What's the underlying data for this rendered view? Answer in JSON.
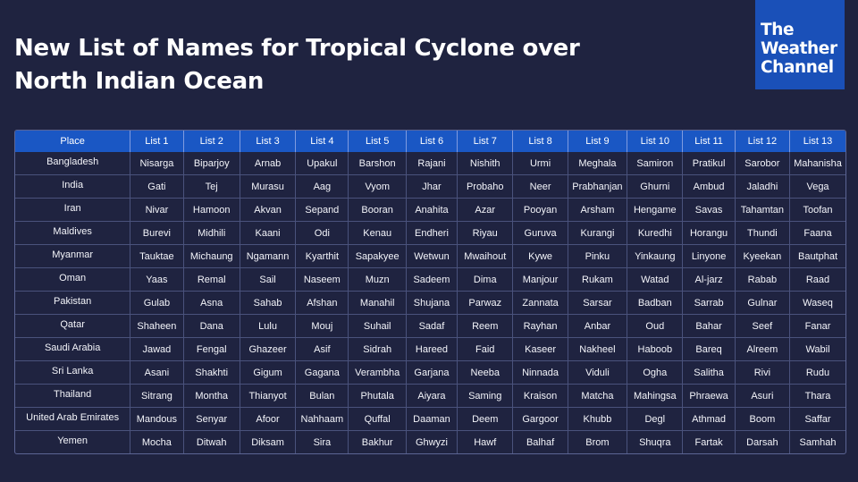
{
  "title": {
    "line1": "New List of Names for Tropical Cyclone over",
    "line2": "North Indian Ocean"
  },
  "logo": {
    "line1": "The",
    "line2": "Weather",
    "line3": "Channel"
  },
  "colors": {
    "background": "#1f2340",
    "header": "#1a57c4",
    "logo": "#1a50b8"
  },
  "table": {
    "headers": [
      "Place",
      "List 1",
      "List 2",
      "List 3",
      "List 4",
      "List 5",
      "List 6",
      "List 7",
      "List 8",
      "List 9",
      "List 10",
      "List 11",
      "List 12",
      "List 13"
    ],
    "rows": [
      [
        "Bangladesh",
        "Nisarga",
        "Biparjoy",
        "Arnab",
        "Upakul",
        "Barshon",
        "Rajani",
        "Nishith",
        "Urmi",
        "Meghala",
        "Samiron",
        "Pratikul",
        "Sarobor",
        "Mahanisha"
      ],
      [
        "India",
        "Gati",
        "Tej",
        "Murasu",
        "Aag",
        "Vyom",
        "Jhar",
        "Probaho",
        "Neer",
        "Prabhanjan",
        "Ghurni",
        "Ambud",
        "Jaladhi",
        "Vega"
      ],
      [
        "Iran",
        "Nivar",
        "Hamoon",
        "Akvan",
        "Sepand",
        "Booran",
        "Anahita",
        "Azar",
        "Pooyan",
        "Arsham",
        "Hengame",
        "Savas",
        "Tahamtan",
        "Toofan"
      ],
      [
        "Maldives",
        "Burevi",
        "Midhili",
        "Kaani",
        "Odi",
        "Kenau",
        "Endheri",
        "Riyau",
        "Guruva",
        "Kurangi",
        "Kuredhi",
        "Horangu",
        "Thundi",
        "Faana"
      ],
      [
        "Myanmar",
        "Tauktae",
        "Michaung",
        "Ngamann",
        "Kyarthit",
        "Sapakyee",
        "Wetwun",
        "Mwaihout",
        "Kywe",
        "Pinku",
        "Yinkaung",
        "Linyone",
        "Kyeekan",
        "Bautphat"
      ],
      [
        "Oman",
        "Yaas",
        "Remal",
        "Sail",
        "Naseem",
        "Muzn",
        "Sadeem",
        "Dima",
        "Manjour",
        "Rukam",
        "Watad",
        "Al-jarz",
        "Rabab",
        "Raad"
      ],
      [
        "Pakistan",
        "Gulab",
        "Asna",
        "Sahab",
        "Afshan",
        "Manahil",
        "Shujana",
        "Parwaz",
        "Zannata",
        "Sarsar",
        "Badban",
        "Sarrab",
        "Gulnar",
        "Waseq"
      ],
      [
        "Qatar",
        "Shaheen",
        "Dana",
        "Lulu",
        "Mouj",
        "Suhail",
        "Sadaf",
        "Reem",
        "Rayhan",
        "Anbar",
        "Oud",
        "Bahar",
        "Seef",
        "Fanar"
      ],
      [
        "Saudi Arabia",
        "Jawad",
        "Fengal",
        "Ghazeer",
        "Asif",
        "Sidrah",
        "Hareed",
        "Faid",
        "Kaseer",
        "Nakheel",
        "Haboob",
        "Bareq",
        "Alreem",
        "Wabil"
      ],
      [
        "Sri Lanka",
        "Asani",
        "Shakhti",
        "Gigum",
        "Gagana",
        "Verambha",
        "Garjana",
        "Neeba",
        "Ninnada",
        "Viduli",
        "Ogha",
        "Salitha",
        "Rivi",
        "Rudu"
      ],
      [
        "Thailand",
        "Sitrang",
        "Montha",
        "Thianyot",
        "Bulan",
        "Phutala",
        "Aiyara",
        "Saming",
        "Kraison",
        "Matcha",
        "Mahingsa",
        "Phraewa",
        "Asuri",
        "Thara"
      ],
      [
        "United Arab Emirates",
        "Mandous",
        "Senyar",
        "Afoor",
        "Nahhaam",
        "Quffal",
        "Daaman",
        "Deem",
        "Gargoor",
        "Khubb",
        "Degl",
        "Athmad",
        "Boom",
        "Saffar"
      ],
      [
        "Yemen",
        "Mocha",
        "Ditwah",
        "Diksam",
        "Sira",
        "Bakhur",
        "Ghwyzi",
        "Hawf",
        "Balhaf",
        "Brom",
        "Shuqra",
        "Fartak",
        "Darsah",
        "Samhah"
      ]
    ]
  }
}
